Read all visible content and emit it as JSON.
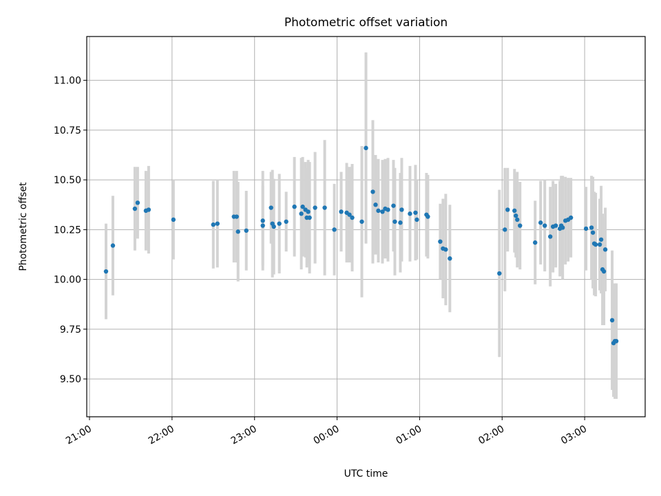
{
  "chart_data": {
    "type": "scatter",
    "title": "Photometric offset variation",
    "xlabel": "UTC time",
    "ylabel": "Photometric offset",
    "grid": true,
    "legend": "none",
    "x_ticks": [
      "21:00",
      "22:00",
      "23:00",
      "00:00",
      "01:00",
      "02:00",
      "03:00"
    ],
    "y_ticks": [
      "9.50",
      "9.75",
      "10.00",
      "10.25",
      "10.50",
      "10.75",
      "11.00"
    ],
    "xlim": [
      "20:58",
      "03:44"
    ],
    "ylim": [
      9.31,
      11.22
    ],
    "colors": {
      "point": "#1f77b4",
      "errorbar": "#d3d3d3",
      "grid": "#b0b0b0"
    },
    "series": [
      {
        "x": [
          "21:12",
          "21:17",
          "21:33",
          "21:35",
          "21:41",
          "21:43",
          "22:01",
          "22:30",
          "22:33",
          "22:45",
          "22:47",
          "22:48",
          "22:54",
          "23:06",
          "23:06",
          "23:12",
          "23:13",
          "23:14",
          "23:18",
          "23:23",
          "23:29",
          "23:34",
          "23:35",
          "23:37",
          "23:38",
          "23:39",
          "23:40",
          "23:44",
          "23:51",
          "23:58",
          "24:03",
          "24:07",
          "24:09",
          "24:11",
          "24:18",
          "24:21",
          "24:26",
          "24:28",
          "24:30",
          "24:33",
          "24:35",
          "24:37",
          "24:41",
          "24:42",
          "24:46",
          "24:47",
          "24:53",
          "24:57",
          "24:58",
          "25:05",
          "25:06",
          "25:15",
          "25:17",
          "25:19",
          "25:22",
          "25:58",
          "26:02",
          "26:04",
          "26:09",
          "26:10",
          "26:11",
          "26:13",
          "26:24",
          "26:28",
          "26:31",
          "26:35",
          "26:37",
          "26:39",
          "26:42",
          "26:43",
          "26:44",
          "26:46",
          "26:48",
          "26:50",
          "27:01",
          "27:05",
          "27:06",
          "27:07",
          "27:08",
          "27:11",
          "27:12",
          "27:13",
          "27:14",
          "27:15",
          "27:20",
          "27:21",
          "27:22",
          "27:23"
        ],
        "y": [
          10.04,
          10.17,
          10.355,
          10.385,
          10.345,
          10.35,
          10.3,
          10.275,
          10.28,
          10.315,
          10.315,
          10.24,
          10.245,
          10.295,
          10.27,
          10.36,
          10.28,
          10.265,
          10.28,
          10.29,
          10.365,
          10.33,
          10.365,
          10.35,
          10.31,
          10.34,
          10.31,
          10.36,
          10.36,
          10.25,
          10.34,
          10.335,
          10.325,
          10.31,
          10.29,
          10.66,
          10.44,
          10.375,
          10.345,
          10.34,
          10.355,
          10.35,
          10.37,
          10.29,
          10.285,
          10.35,
          10.33,
          10.335,
          10.3,
          10.325,
          10.315,
          10.19,
          10.155,
          10.15,
          10.105,
          10.03,
          10.25,
          10.35,
          10.345,
          10.32,
          10.3,
          10.27,
          10.185,
          10.285,
          10.27,
          10.215,
          10.265,
          10.27,
          10.255,
          10.27,
          10.26,
          10.295,
          10.3,
          10.31,
          10.255,
          10.26,
          10.235,
          10.18,
          10.175,
          10.175,
          10.2,
          10.05,
          10.04,
          10.15,
          9.795,
          9.68,
          9.69,
          9.69
        ],
        "err": [
          0.24,
          0.25,
          0.21,
          0.18,
          0.2,
          0.22,
          0.2,
          0.22,
          0.22,
          0.23,
          0.23,
          0.25,
          0.2,
          0.25,
          0.2,
          0.18,
          0.27,
          0.24,
          0.25,
          0.15,
          0.25,
          0.28,
          0.25,
          0.24,
          0.25,
          0.26,
          0.28,
          0.28,
          0.34,
          0.23,
          0.2,
          0.25,
          0.24,
          0.27,
          0.38,
          0.48,
          0.36,
          0.25,
          0.26,
          0.26,
          0.25,
          0.26,
          0.23,
          0.27,
          0.25,
          0.26,
          0.24,
          0.24,
          0.2,
          0.21,
          0.21,
          0.19,
          0.25,
          0.28,
          0.27,
          0.42,
          0.31,
          0.21,
          0.21,
          0.21,
          0.24,
          0.22,
          0.21,
          0.21,
          0.23,
          0.25,
          0.23,
          0.21,
          0.24,
          0.25,
          0.26,
          0.22,
          0.21,
          0.2,
          0.21,
          0.26,
          0.28,
          0.26,
          0.26,
          0.23,
          0.27,
          0.28,
          0.27,
          0.21,
          0.35,
          0.27,
          0.29,
          0.29
        ]
      }
    ]
  }
}
